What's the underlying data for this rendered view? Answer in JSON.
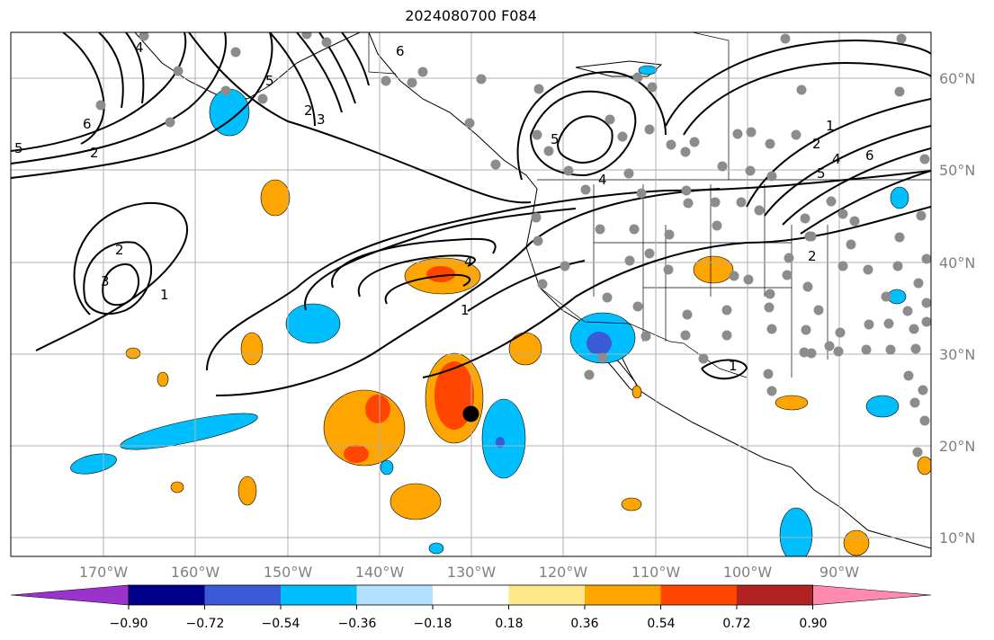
{
  "title": "2024080700 F084",
  "projection": "cylindrical",
  "extent": {
    "lon": [
      -180,
      -80
    ],
    "lat": [
      8,
      65
    ]
  },
  "longitude_labels": [
    "170°W",
    "160°W",
    "150°W",
    "140°W",
    "130°W",
    "120°W",
    "110°W",
    "100°W",
    "90°W"
  ],
  "latitude_labels": [
    "60°N",
    "50°N",
    "40°N",
    "30°N",
    "20°N",
    "10°N"
  ],
  "colorbar": {
    "ticks": [
      "−0.90",
      "−0.72",
      "−0.54",
      "−0.36",
      "−0.18",
      "0.18",
      "0.36",
      "0.54",
      "0.72",
      "0.90"
    ],
    "colors": [
      "#9933cc",
      "#00008b",
      "#3b5bd6",
      "#00bfff",
      "#b0e2ff",
      "#ffffff",
      "#fde98a",
      "#ffa500",
      "#ff4500",
      "#b22222",
      "#ff8ab0"
    ],
    "extend": "both"
  },
  "contour_labels": [
    "1",
    "2",
    "3",
    "4",
    "5",
    "6"
  ],
  "colors": {
    "station": "#8c8c8c",
    "marker": "#000000",
    "grid": "#b0b0b0",
    "coast": "#000000"
  },
  "marker": {
    "name": "storm-center",
    "lon": -130,
    "lat": 23.5
  }
}
